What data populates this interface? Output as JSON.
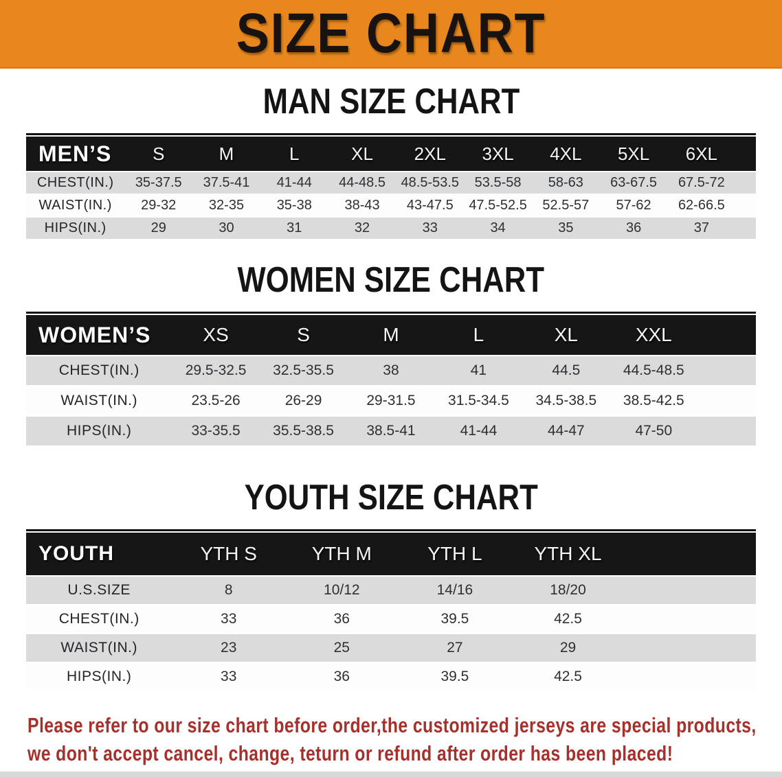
{
  "colors": {
    "banner_bg": "#E7871E",
    "header_bg": "#161616",
    "row_gray": "#DBDBDB",
    "disclaimer_red": "#A6302B"
  },
  "banner": {
    "title": "SIZE CHART"
  },
  "sections": [
    {
      "heading": "MAN SIZE CHART",
      "table": {
        "label": "MEN’S",
        "columns": [
          "S",
          "M",
          "L",
          "XL",
          "2XL",
          "3XL",
          "4XL",
          "5XL",
          "6XL"
        ],
        "rows": [
          {
            "label": "CHEST(IN.)",
            "values": [
              "35-37.5",
              "37.5-41",
              "41-44",
              "44-48.5",
              "48.5-53.5",
              "53.5-58",
              "58-63",
              "63-67.5",
              "67.5-72"
            ]
          },
          {
            "label": "WAIST(IN.)",
            "values": [
              "29-32",
              "32-35",
              "35-38",
              "38-43",
              "43-47.5",
              "47.5-52.5",
              "52.5-57",
              "57-62",
              "62-66.5"
            ]
          },
          {
            "label": "HIPS(IN.)",
            "values": [
              "29",
              "30",
              "31",
              "32",
              "33",
              "34",
              "35",
              "36",
              "37"
            ]
          }
        ]
      }
    },
    {
      "heading": "WOMEN SIZE CHART",
      "table": {
        "label": "WOMEN’S",
        "columns": [
          "XS",
          "S",
          "M",
          "L",
          "XL",
          "XXL"
        ],
        "rows": [
          {
            "label": "CHEST(IN.)",
            "values": [
              "29.5-32.5",
              "32.5-35.5",
              "38",
              "41",
              "44.5",
              "44.5-48.5"
            ]
          },
          {
            "label": "WAIST(IN.)",
            "values": [
              "23.5-26",
              "26-29",
              "29-31.5",
              "31.5-34.5",
              "34.5-38.5",
              "38.5-42.5"
            ]
          },
          {
            "label": "HIPS(IN.)",
            "values": [
              "33-35.5",
              "35.5-38.5",
              "38.5-41",
              "41-44",
              "44-47",
              "47-50"
            ]
          }
        ]
      }
    },
    {
      "heading": "YOUTH SIZE CHART",
      "table": {
        "label": "YOUTH",
        "columns": [
          "YTH S",
          "YTH M",
          "YTH L",
          "YTH XL"
        ],
        "rows": [
          {
            "label": "U.S.SIZE",
            "values": [
              "8",
              "10/12",
              "14/16",
              "18/20"
            ]
          },
          {
            "label": "CHEST(IN.)",
            "values": [
              "33",
              "36",
              "39.5",
              "42.5"
            ]
          },
          {
            "label": "WAIST(IN.)",
            "values": [
              "23",
              "25",
              "27",
              "29"
            ]
          },
          {
            "label": "HIPS(IN.)",
            "values": [
              "33",
              "36",
              "39.5",
              "42.5"
            ]
          }
        ]
      }
    }
  ],
  "disclaimer": {
    "line1": "Please refer to our size chart before order,the customized jerseys are special products,",
    "line2": "we don't accept cancel, change, teturn or refund after order has been placed!"
  }
}
